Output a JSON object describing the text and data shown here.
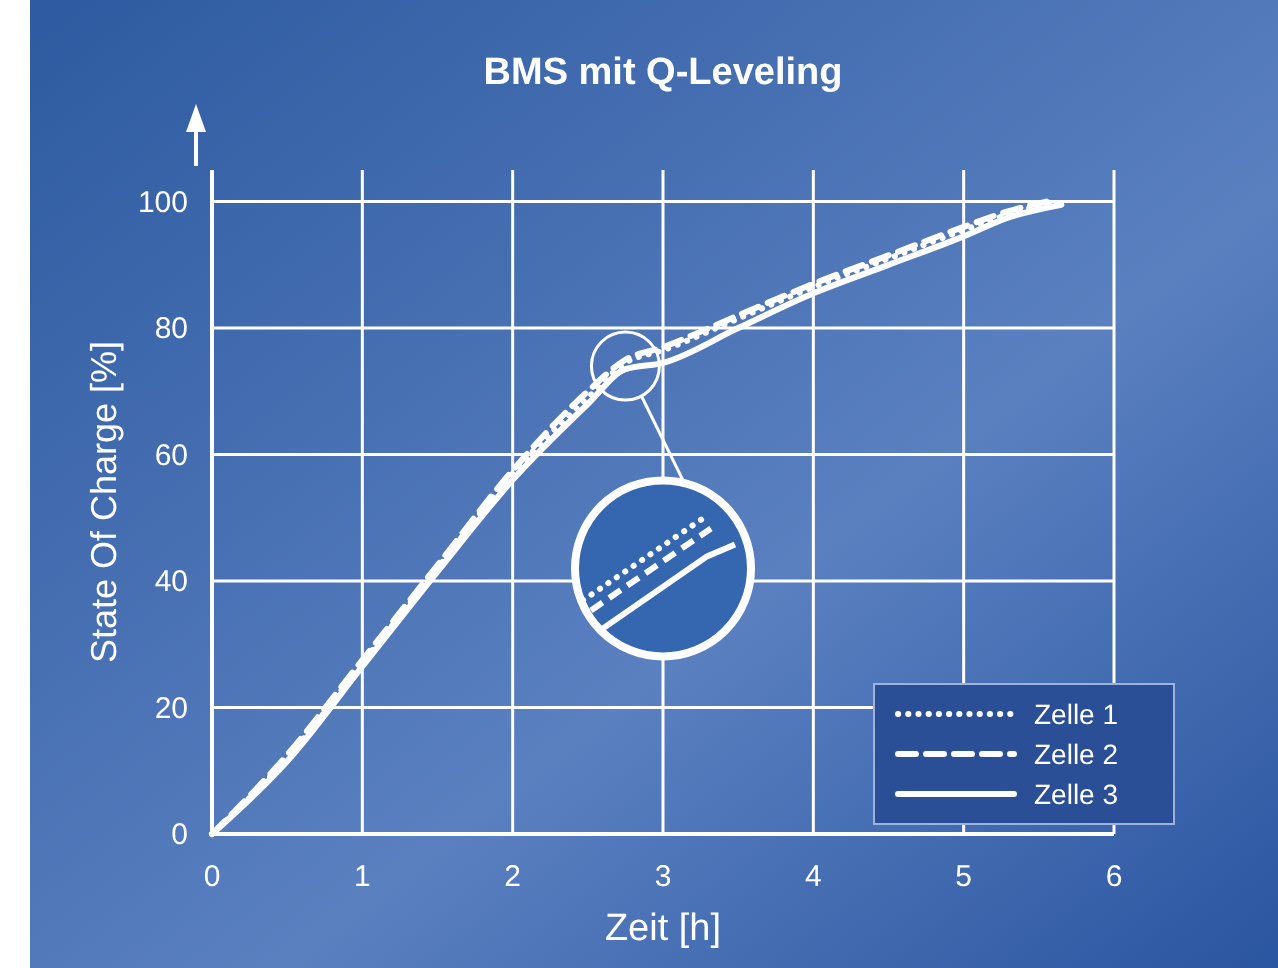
{
  "chart_data": {
    "type": "line",
    "title": "BMS mit Q-Leveling",
    "xlabel": "Zeit [h]",
    "ylabel": "State Of Charge [%]",
    "xlim": [
      0,
      6
    ],
    "xticks": [
      0,
      1,
      2,
      3,
      4,
      5,
      6
    ],
    "ylim": [
      0,
      105
    ],
    "yticks": [
      0,
      20,
      40,
      60,
      80,
      100
    ],
    "grid": true,
    "legend": "bottom right",
    "series": [
      {
        "name": "Zelle 1",
        "color": "#ffffff",
        "line_style": "dotted",
        "x": [
          0,
          0.5,
          1,
          1.5,
          2,
          2.5,
          2.75,
          3,
          3.5,
          4,
          4.5,
          5,
          5.3,
          5.6
        ],
        "values": [
          0,
          12,
          27,
          42,
          57,
          69,
          74.5,
          76.5,
          81.5,
          86.5,
          91,
          95.5,
          98,
          100
        ]
      },
      {
        "name": "Zelle 2",
        "color": "#ffffff",
        "line_style": "dashed",
        "x": [
          0,
          0.5,
          1,
          1.5,
          2,
          2.5,
          2.75,
          3,
          3.5,
          4,
          4.5,
          5,
          5.3,
          5.55
        ],
        "values": [
          0,
          12.5,
          27.5,
          42.5,
          57.5,
          70,
          75,
          77,
          82,
          87,
          91.5,
          96,
          98.5,
          100
        ]
      },
      {
        "name": "Zelle 3",
        "color": "#ffffff",
        "line_style": "solid",
        "x": [
          0,
          0.5,
          1,
          1.5,
          2,
          2.5,
          2.75,
          3,
          3.5,
          4,
          4.5,
          5,
          5.3,
          5.65
        ],
        "values": [
          0,
          11.5,
          26.5,
          41.5,
          56,
          68,
          73.5,
          74.5,
          80,
          85.5,
          90,
          94.5,
          97.5,
          99.5
        ]
      }
    ]
  }
}
